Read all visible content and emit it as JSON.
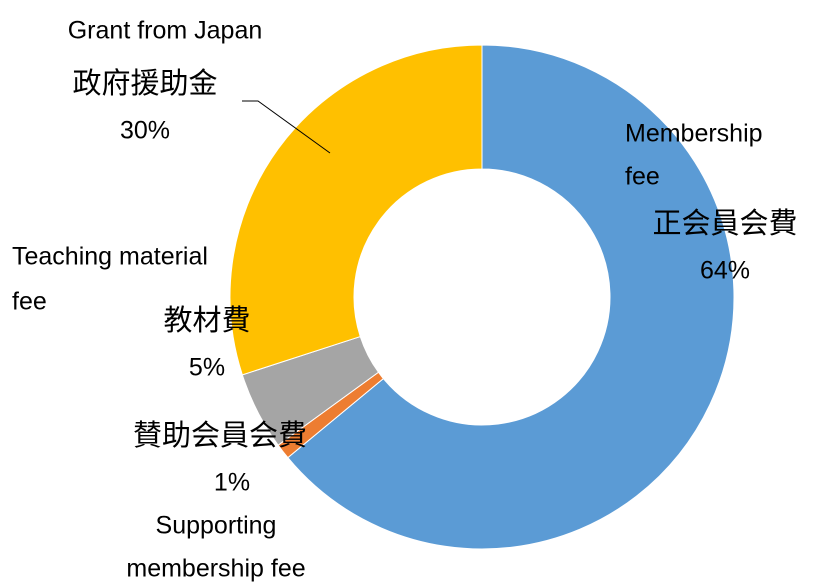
{
  "chart_data": {
    "type": "donut",
    "categories": [
      "正会員会費",
      "賛助会員会費",
      "教材費",
      "政府援助金"
    ],
    "english_labels": [
      [
        "Membership",
        "fee"
      ],
      [
        "Supporting",
        "membership fee"
      ],
      [
        "Teaching material",
        "fee"
      ],
      [
        "Grant from Japan"
      ]
    ],
    "values": [
      64,
      1,
      5,
      30
    ],
    "value_labels": [
      "64%",
      "1%",
      "5%",
      "30%"
    ],
    "colors": [
      "#5b9bd5",
      "#ed7d31",
      "#a5a5a5",
      "#ffc000"
    ]
  }
}
